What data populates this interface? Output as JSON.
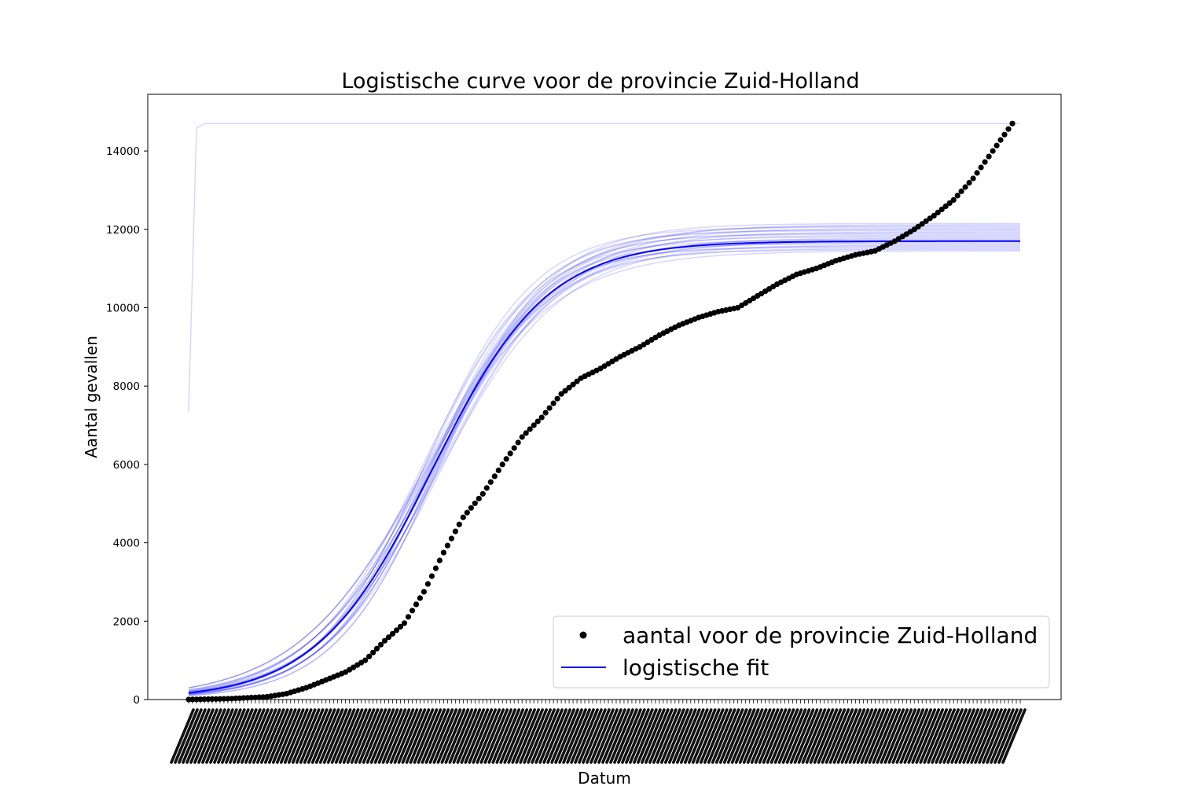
{
  "chart_data": {
    "type": "scatter",
    "title": "Logistische curve voor de provincie Zuid-Holland",
    "xlabel": "Datum",
    "ylabel": "Aantal gevallen",
    "ylim": [
      0,
      15400
    ],
    "yticks": [
      0,
      2000,
      4000,
      6000,
      8000,
      10000,
      12000,
      14000
    ],
    "x_count": 213,
    "x_tick_labels_legible": false,
    "legend": {
      "position": "lower right",
      "entries": [
        {
          "label": "aantal voor de provincie Zuid-Holland",
          "marker": "dot",
          "color": "#000000"
        },
        {
          "label": "logistische fit",
          "marker": "line",
          "color": "#0000ff"
        }
      ]
    },
    "series": [
      {
        "name": "aantal voor de provincie Zuid-Holland",
        "type": "scatter",
        "color": "#000000",
        "x": [
          0,
          10,
          20,
          25,
          30,
          35,
          40,
          45,
          50,
          55,
          60,
          65,
          70,
          75,
          80,
          85,
          90,
          95,
          100,
          105,
          110,
          115,
          120,
          125,
          130,
          135,
          140,
          145,
          150,
          155,
          160,
          165,
          170,
          175,
          180,
          185,
          190,
          195,
          200,
          205,
          210
        ],
        "y": [
          0,
          20,
          70,
          150,
          300,
          500,
          700,
          1000,
          1500,
          1950,
          2750,
          3750,
          4650,
          5250,
          6000,
          6700,
          7200,
          7800,
          8200,
          8450,
          8750,
          9000,
          9300,
          9550,
          9750,
          9900,
          10000,
          10300,
          10600,
          10850,
          11000,
          11200,
          11350,
          11450,
          11700,
          12000,
          12350,
          12750,
          13300,
          14000,
          14700
        ]
      },
      {
        "name": "logistische fit",
        "type": "line",
        "color": "#0000ff",
        "params": {
          "K": 11700,
          "r": 0.068,
          "t0": 62
        },
        "x": [
          0,
          10,
          20,
          30,
          40,
          50,
          60,
          70,
          80,
          90,
          100,
          110,
          120,
          130,
          140,
          150,
          160,
          170,
          180,
          190,
          200,
          212
        ],
        "y": [
          345,
          656,
          1207,
          2102,
          3395,
          5009,
          6732,
          8288,
          9497,
          10331,
          10861,
          11180,
          11367,
          11474,
          11536,
          11571,
          11591,
          11602,
          11608,
          11612,
          11614,
          11615
        ]
      }
    ],
    "bootstrap_fits": {
      "color": "#0000ff",
      "count": 24,
      "K_range": [
        11450,
        12150
      ],
      "outlier": {
        "K": 14700,
        "start_y": 7350
      }
    }
  }
}
